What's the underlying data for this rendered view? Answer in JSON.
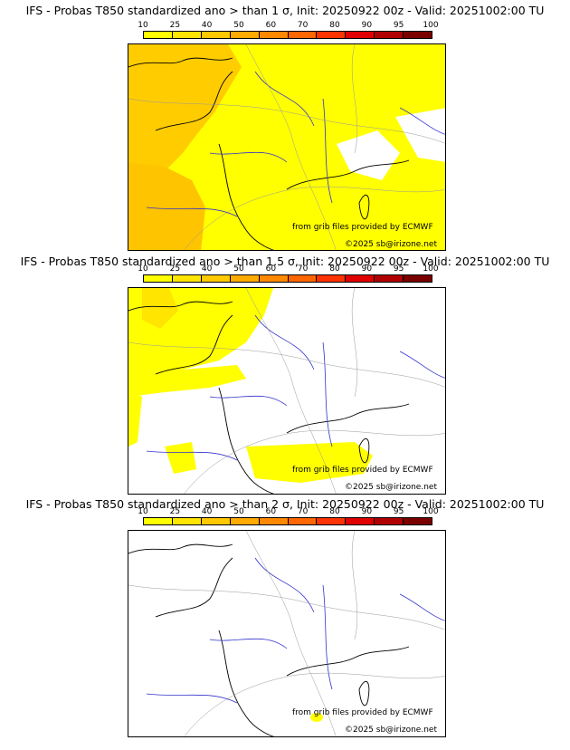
{
  "colorbar": {
    "ticks": [
      "10",
      "25",
      "40",
      "50",
      "60",
      "70",
      "80",
      "90",
      "95",
      "100"
    ],
    "colors": [
      "#ffff00",
      "#ffe500",
      "#ffc800",
      "#ffaa00",
      "#ff8800",
      "#ff6600",
      "#ff3300",
      "#e00000",
      "#b00000",
      "#7a0000"
    ]
  },
  "panels": [
    {
      "title": "IFS - Probas T850  standardized ano > than 1 σ, Init: 20250922 00z - Valid: 20251002:00 TU",
      "credit_source": "from grib files provided by ECMWF",
      "credit_copyright": "©2025 sb@irizone.net"
    },
    {
      "title": "IFS - Probas T850  standardized ano > than 1.5 σ, Init: 20250922 00z - Valid: 20251002:00 TU",
      "credit_source": "from grib files provided by ECMWF",
      "credit_copyright": "©2025 sb@irizone.net"
    },
    {
      "title": "IFS - Probas T850  standardized ano > than 2 σ, Init: 20250922 00z - Valid: 20251002:00 TU",
      "credit_source": "from grib files provided by ECMWF",
      "credit_copyright": "©2025 sb@irizone.net"
    }
  ]
}
